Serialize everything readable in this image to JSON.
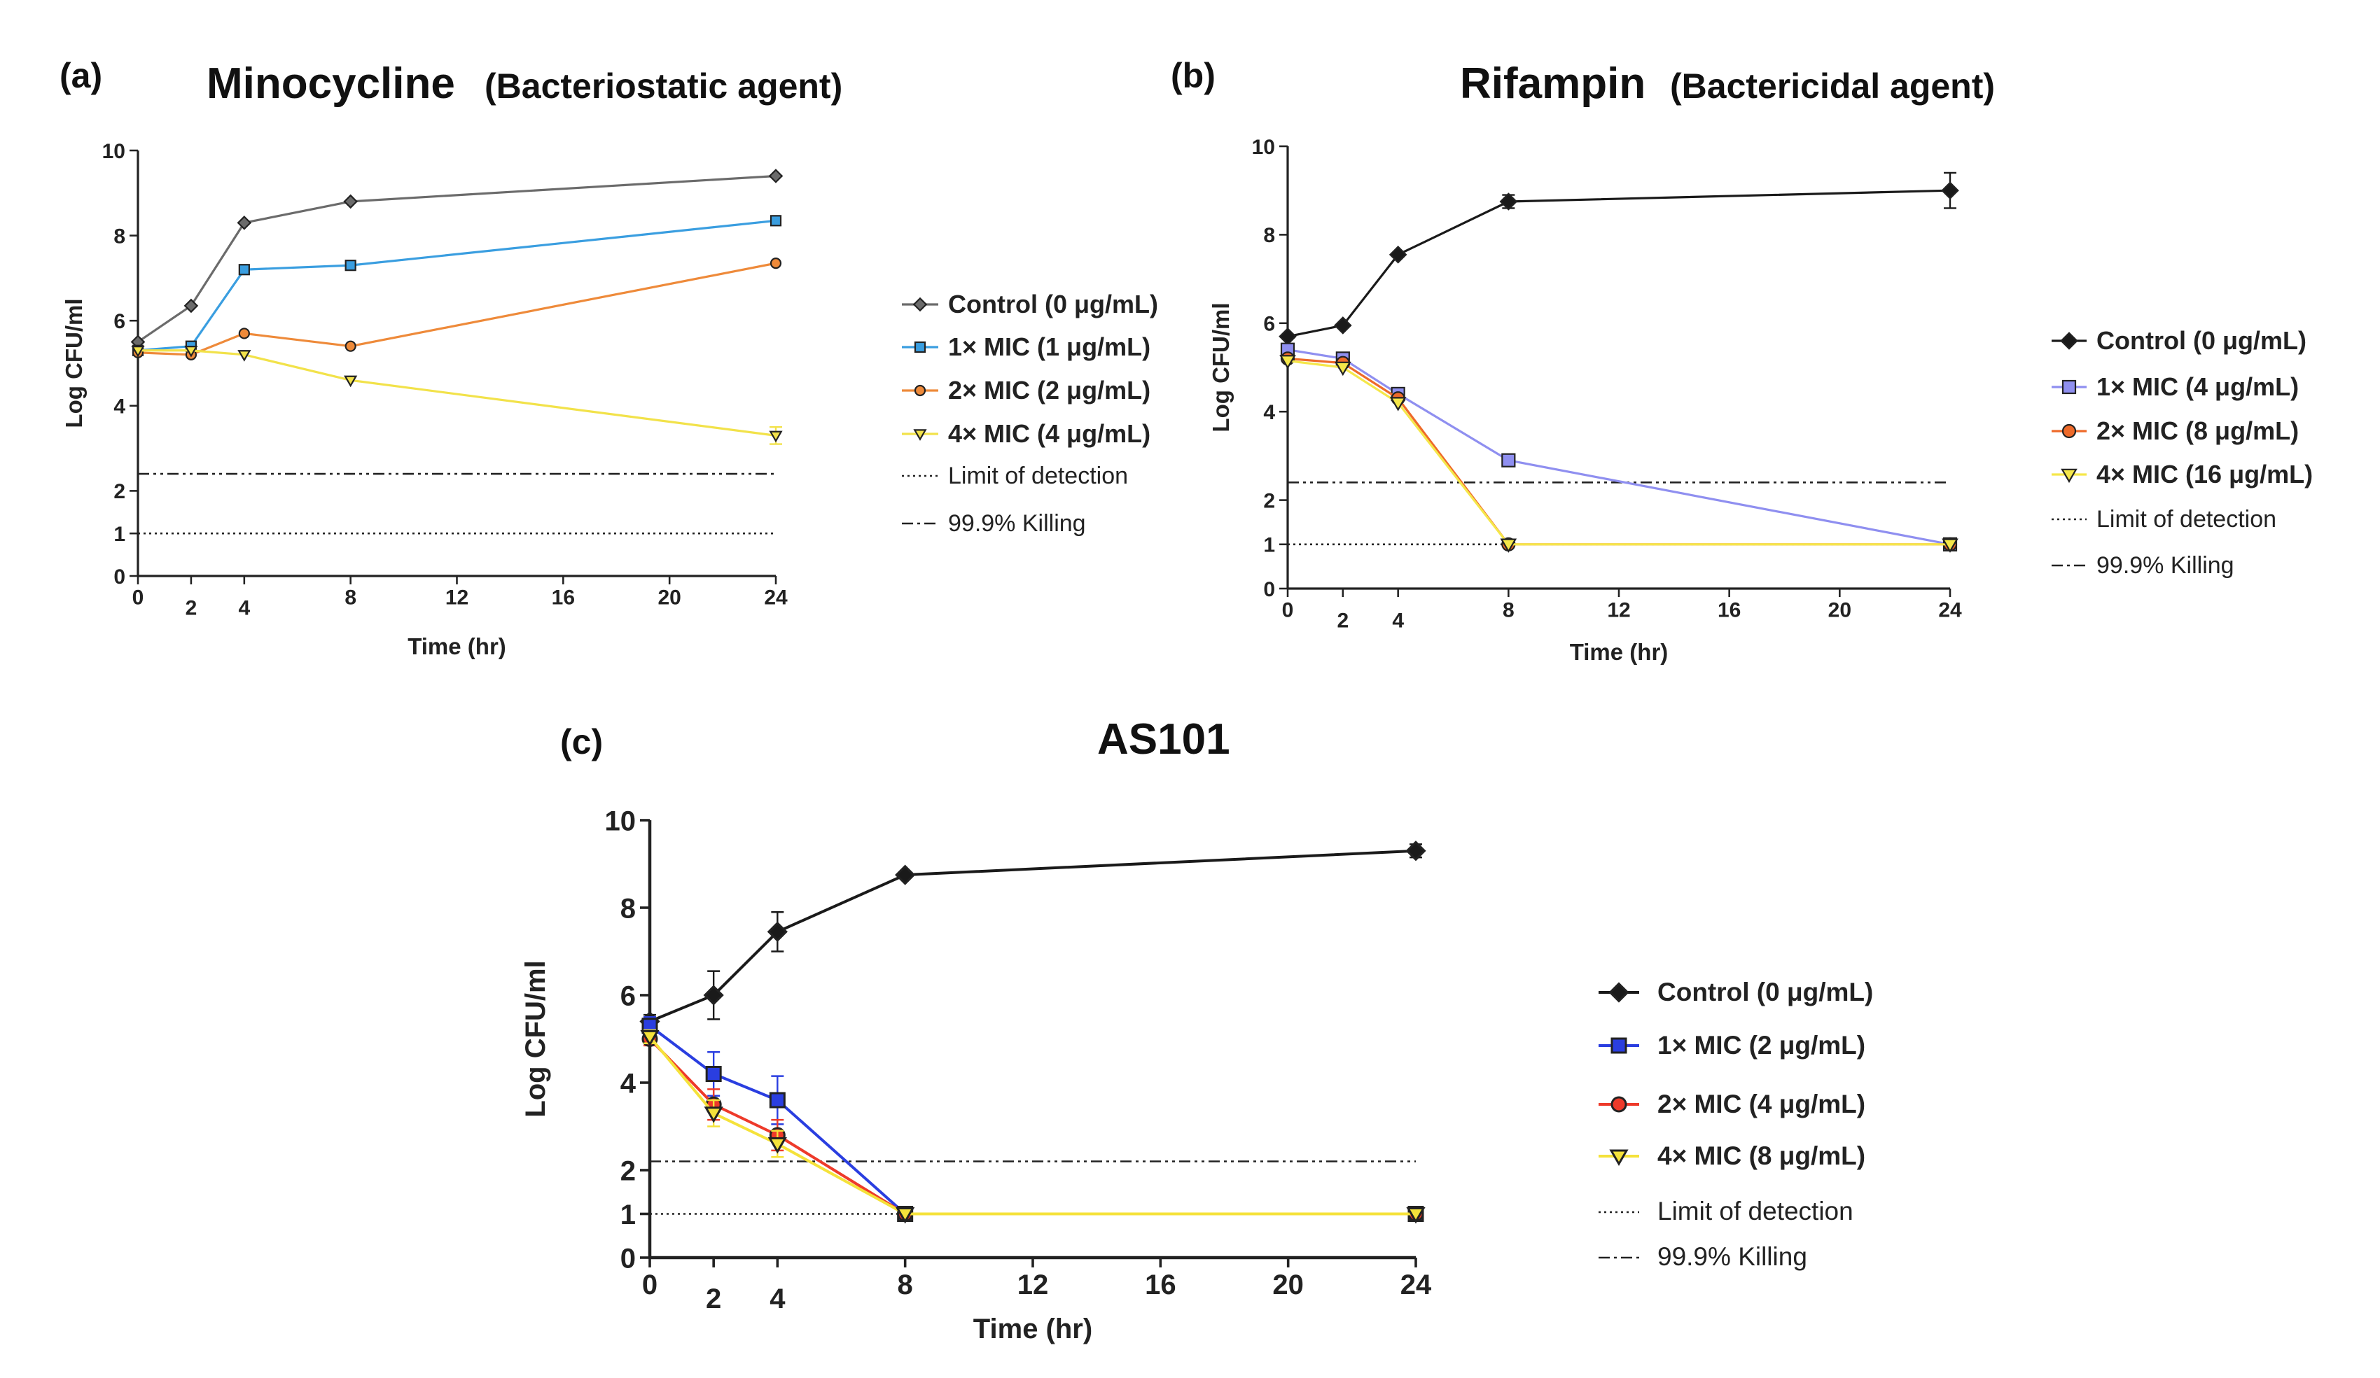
{
  "chart_data": [
    {
      "type": "line",
      "panel": "(a)",
      "title": "Minocycline",
      "subtitle": "(Bacteriostatic agent)",
      "xlabel": "Time (hr)",
      "ylabel": "Log CFU/ml",
      "xlim": [
        0,
        24
      ],
      "ylim": [
        0,
        10
      ],
      "xticks": [
        "0",
        "2",
        "4",
        "8",
        "12",
        "16",
        "20",
        "24"
      ],
      "yticks": [
        "0",
        "1",
        "2",
        "4",
        "6",
        "8",
        "10"
      ],
      "series": [
        {
          "name": "Control (0 μg/mL)",
          "color": "#6b6b6b",
          "marker": "diamond",
          "x": [
            0,
            2,
            4,
            8,
            24
          ],
          "values": [
            5.5,
            6.35,
            8.3,
            8.8,
            9.4
          ],
          "err": [
            0,
            0,
            0,
            0,
            0
          ]
        },
        {
          "name": "1× MIC (1 μg/mL)",
          "color": "#3a9ee0",
          "marker": "square",
          "x": [
            0,
            2,
            4,
            8,
            24
          ],
          "values": [
            5.3,
            5.4,
            7.2,
            7.3,
            8.35
          ],
          "err": [
            0,
            0,
            0,
            0,
            0
          ]
        },
        {
          "name": "2× MIC (2 μg/mL)",
          "color": "#ee8a3a",
          "marker": "circle",
          "x": [
            0,
            2,
            4,
            8,
            24
          ],
          "values": [
            5.25,
            5.2,
            5.7,
            5.4,
            7.35
          ],
          "err": [
            0,
            0,
            0,
            0,
            0
          ]
        },
        {
          "name": "4× MIC (4 μg/mL)",
          "color": "#f2e24a",
          "marker": "triangle-down",
          "x": [
            0,
            2,
            4,
            8,
            24
          ],
          "values": [
            5.3,
            5.3,
            5.2,
            4.6,
            3.3
          ],
          "err": [
            0,
            0,
            0,
            0,
            0.2
          ]
        }
      ],
      "reference_lines": [
        {
          "name": "Limit of detection",
          "y": 1,
          "style": "dotted"
        },
        {
          "name": "99.9% Killing",
          "y": 2.4,
          "style": "dash-dot"
        }
      ]
    },
    {
      "type": "line",
      "panel": "(b)",
      "title": "Rifampin",
      "subtitle": "(Bactericidal agent)",
      "xlabel": "Time (hr)",
      "ylabel": "Log CFU/ml",
      "xlim": [
        0,
        24
      ],
      "ylim": [
        0,
        10
      ],
      "xticks": [
        "0",
        "2",
        "4",
        "8",
        "12",
        "16",
        "20",
        "24"
      ],
      "yticks": [
        "0",
        "1",
        "2",
        "4",
        "6",
        "8",
        "10"
      ],
      "series": [
        {
          "name": "Control (0 μg/mL)",
          "color": "#1a1a1a",
          "marker": "diamond",
          "x": [
            0,
            2,
            4,
            8,
            24
          ],
          "values": [
            5.7,
            5.95,
            7.55,
            8.75,
            9.0
          ],
          "err": [
            0,
            0,
            0,
            0.15,
            0.4
          ]
        },
        {
          "name": "1× MIC (4 μg/mL)",
          "color": "#8f8ff0",
          "marker": "square",
          "x": [
            0,
            2,
            4,
            8,
            24
          ],
          "values": [
            5.4,
            5.2,
            4.4,
            2.9,
            1.0
          ],
          "err": [
            0,
            0,
            0,
            0,
            0
          ]
        },
        {
          "name": "2× MIC (8 μg/mL)",
          "color": "#ee6a2a",
          "marker": "circle",
          "x": [
            0,
            2,
            4,
            8,
            24
          ],
          "values": [
            5.2,
            5.1,
            4.3,
            1.0,
            1.0
          ],
          "err": [
            0,
            0,
            0,
            0,
            0
          ]
        },
        {
          "name": "4× MIC (16 μg/mL)",
          "color": "#f5e74a",
          "marker": "triangle-down",
          "x": [
            0,
            2,
            4,
            8,
            24
          ],
          "values": [
            5.15,
            5.0,
            4.2,
            1.0,
            1.0
          ],
          "err": [
            0,
            0,
            0,
            0,
            0
          ]
        }
      ],
      "reference_lines": [
        {
          "name": "Limit of detection",
          "y": 1,
          "style": "dotted"
        },
        {
          "name": "99.9% Killing",
          "y": 2.4,
          "style": "dash-dot"
        }
      ]
    },
    {
      "type": "line",
      "panel": "(c)",
      "title": "AS101",
      "subtitle": "",
      "xlabel": "Time (hr)",
      "ylabel": "Log CFU/ml",
      "xlim": [
        0,
        24
      ],
      "ylim": [
        0,
        10
      ],
      "xticks": [
        "0",
        "2",
        "4",
        "8",
        "12",
        "16",
        "20",
        "24"
      ],
      "yticks": [
        "0",
        "1",
        "2",
        "4",
        "6",
        "8",
        "10"
      ],
      "series": [
        {
          "name": "Control (0 μg/mL)",
          "color": "#1a1a1a",
          "marker": "diamond",
          "x": [
            0,
            2,
            4,
            8,
            24
          ],
          "values": [
            5.4,
            6.0,
            7.45,
            8.75,
            9.3
          ],
          "err": [
            0.15,
            0.55,
            0.45,
            0,
            0.15
          ]
        },
        {
          "name": "1× MIC (2 μg/mL)",
          "color": "#2a3ee0",
          "marker": "square",
          "x": [
            0,
            2,
            4,
            8,
            24
          ],
          "values": [
            5.3,
            4.2,
            3.6,
            1.0,
            1.0
          ],
          "err": [
            0.2,
            0.5,
            0.55,
            0,
            0
          ]
        },
        {
          "name": "2× MIC (4 μg/mL)",
          "color": "#ee3a2a",
          "marker": "circle",
          "x": [
            0,
            2,
            4,
            8,
            24
          ],
          "values": [
            5.0,
            3.5,
            2.8,
            1.0,
            1.0
          ],
          "err": [
            0.15,
            0.35,
            0.35,
            0,
            0
          ]
        },
        {
          "name": "4× MIC (8 μg/mL)",
          "color": "#f5e23a",
          "marker": "triangle-down",
          "x": [
            0,
            2,
            4,
            8,
            24
          ],
          "values": [
            5.05,
            3.3,
            2.6,
            1.0,
            1.0
          ],
          "err": [
            0.15,
            0.3,
            0.3,
            0,
            0
          ]
        }
      ],
      "reference_lines": [
        {
          "name": "Limit of detection",
          "y": 1,
          "style": "dotted"
        },
        {
          "name": "99.9% Killing",
          "y": 2.2,
          "style": "dash-dot"
        }
      ]
    }
  ]
}
